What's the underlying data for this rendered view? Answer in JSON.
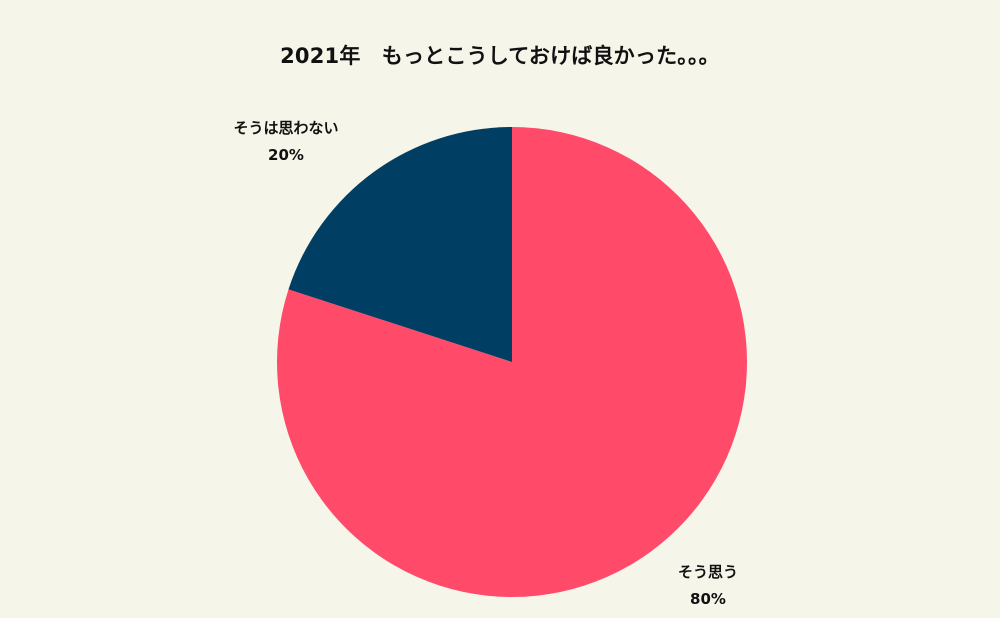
{
  "chart_data": {
    "type": "pie",
    "title": "2021年　もっとこうしておけば良かった。。。",
    "slices": [
      {
        "label": "そう思う",
        "value": 80,
        "value_label": "80%",
        "color": "#ff4b69"
      },
      {
        "label": "そうは思わない",
        "value": 20,
        "value_label": "20%",
        "color": "#003f63"
      }
    ],
    "start_angle": "12 o'clock",
    "direction": "clockwise",
    "legend": "none"
  }
}
